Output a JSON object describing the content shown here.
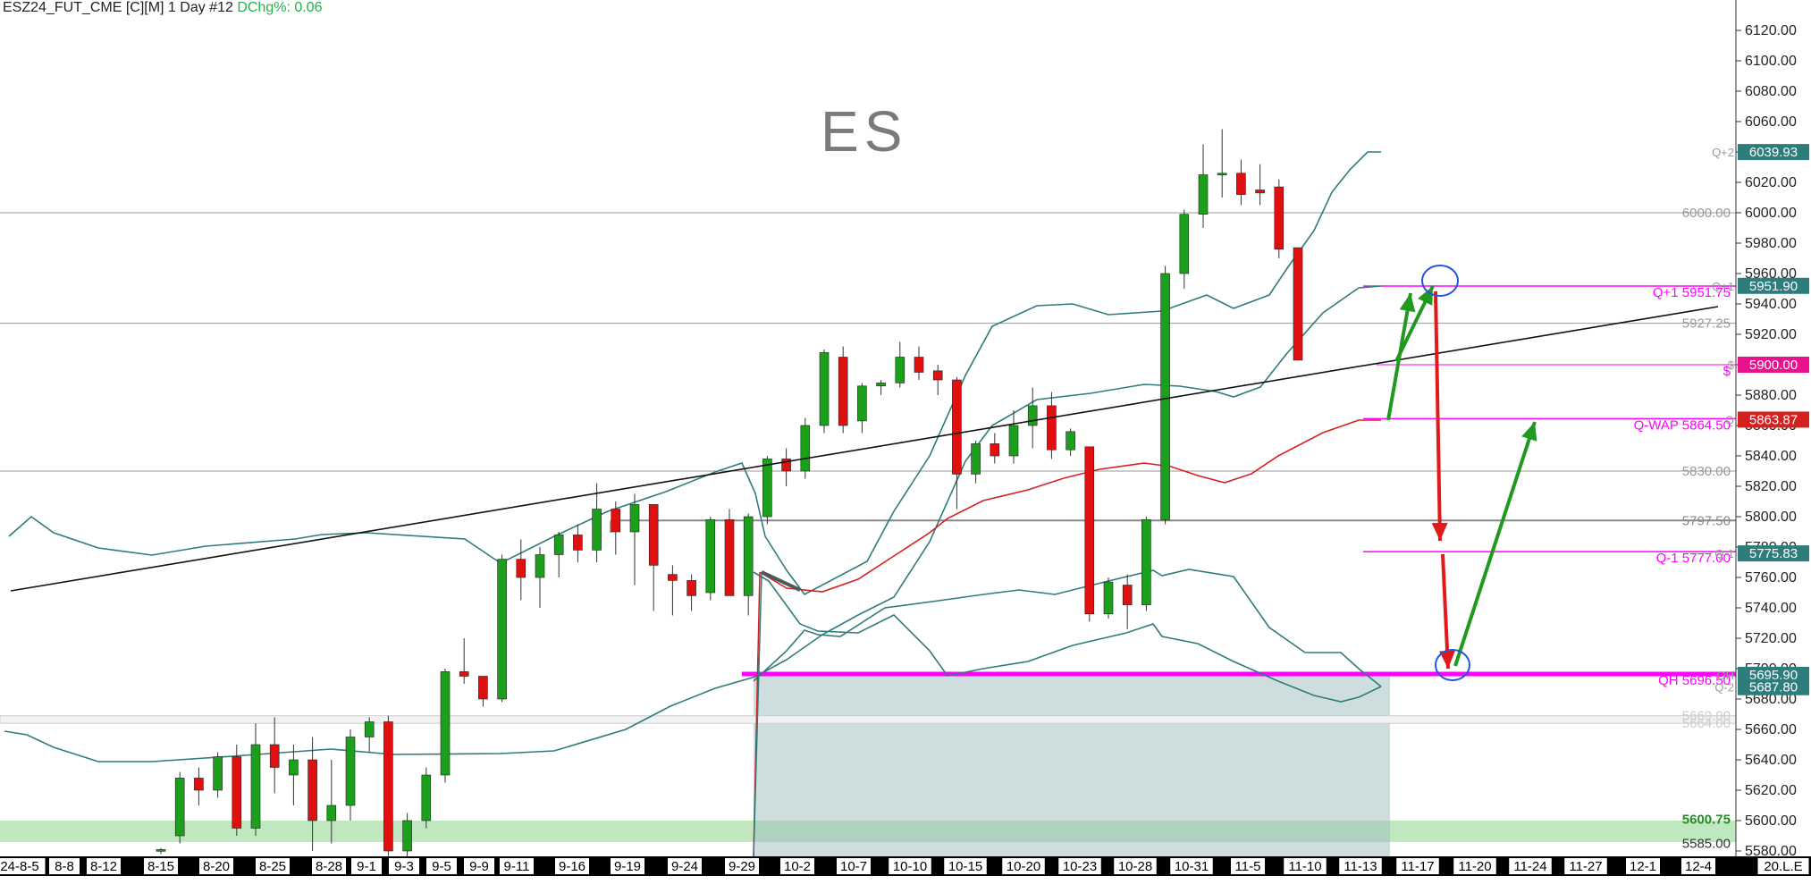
{
  "header": {
    "symbol": "ESZ24_FUT_CME [C][M]  1 Day #12",
    "change_label": "DChg%: 0.06"
  },
  "watermark": "ES",
  "chart_data": {
    "type": "candlestick",
    "title": "ESZ24_FUT_CME [C][M] 1 Day #12",
    "ylim": [
      5575,
      6135
    ],
    "grid": false,
    "y_ticks": [
      5580,
      5600,
      5620,
      5640,
      5660,
      5680,
      5700,
      5720,
      5740,
      5760,
      5780,
      5800,
      5820,
      5840,
      5860,
      5880,
      5900,
      5920,
      5940,
      5960,
      5980,
      6000,
      6020,
      6040,
      6060,
      6080,
      6100,
      6120
    ],
    "x_labels": [
      "24-8-5",
      "8-8",
      "8-12",
      "8-15",
      "8-20",
      "8-25",
      "8-28",
      "9-1",
      "9-3",
      "9-5",
      "9-9",
      "9-11",
      "9-16",
      "9-19",
      "9-24",
      "9-29",
      "10-2",
      "10-7",
      "10-10",
      "10-15",
      "10-20",
      "10-23",
      "10-28",
      "10-31",
      "11-5",
      "11-10",
      "11-13",
      "11-17",
      "11-20",
      "11-24",
      "11-27",
      "12-1",
      "12-4",
      "20.L.E"
    ],
    "candles": [
      {
        "o": 5580,
        "h": 5582,
        "l": 5578,
        "c": 5581
      },
      {
        "o": 5590,
        "h": 5632,
        "l": 5585,
        "c": 5628
      },
      {
        "o": 5628,
        "h": 5635,
        "l": 5610,
        "c": 5620
      },
      {
        "o": 5620,
        "h": 5645,
        "l": 5615,
        "c": 5642
      },
      {
        "o": 5642,
        "h": 5650,
        "l": 5590,
        "c": 5595
      },
      {
        "o": 5595,
        "h": 5664,
        "l": 5590,
        "c": 5650
      },
      {
        "o": 5650,
        "h": 5668,
        "l": 5618,
        "c": 5635
      },
      {
        "o": 5630,
        "h": 5650,
        "l": 5610,
        "c": 5640
      },
      {
        "o": 5640,
        "h": 5655,
        "l": 5580,
        "c": 5600
      },
      {
        "o": 5600,
        "h": 5640,
        "l": 5585,
        "c": 5610
      },
      {
        "o": 5610,
        "h": 5660,
        "l": 5600,
        "c": 5655
      },
      {
        "o": 5655,
        "h": 5668,
        "l": 5645,
        "c": 5665
      },
      {
        "o": 5665,
        "h": 5669,
        "l": 5575,
        "c": 5580
      },
      {
        "o": 5580,
        "h": 5605,
        "l": 5575,
        "c": 5600
      },
      {
        "o": 5600,
        "h": 5635,
        "l": 5595,
        "c": 5630
      },
      {
        "o": 5630,
        "h": 5700,
        "l": 5625,
        "c": 5698
      },
      {
        "o": 5698,
        "h": 5720,
        "l": 5690,
        "c": 5695
      },
      {
        "o": 5695,
        "h": 5695,
        "l": 5675,
        "c": 5680
      },
      {
        "o": 5680,
        "h": 5775,
        "l": 5678,
        "c": 5772
      },
      {
        "o": 5772,
        "h": 5785,
        "l": 5745,
        "c": 5760
      },
      {
        "o": 5760,
        "h": 5780,
        "l": 5740,
        "c": 5775
      },
      {
        "o": 5775,
        "h": 5790,
        "l": 5760,
        "c": 5788
      },
      {
        "o": 5788,
        "h": 5795,
        "l": 5770,
        "c": 5778
      },
      {
        "o": 5778,
        "h": 5822,
        "l": 5770,
        "c": 5805
      },
      {
        "o": 5805,
        "h": 5810,
        "l": 5775,
        "c": 5790
      },
      {
        "o": 5790,
        "h": 5815,
        "l": 5755,
        "c": 5808
      },
      {
        "o": 5808,
        "h": 5808,
        "l": 5738,
        "c": 5768
      },
      {
        "o": 5762,
        "h": 5768,
        "l": 5735,
        "c": 5758
      },
      {
        "o": 5758,
        "h": 5762,
        "l": 5738,
        "c": 5748
      },
      {
        "o": 5750,
        "h": 5800,
        "l": 5745,
        "c": 5798
      },
      {
        "o": 5798,
        "h": 5805,
        "l": 5748,
        "c": 5748
      },
      {
        "o": 5748,
        "h": 5802,
        "l": 5735,
        "c": 5800
      },
      {
        "o": 5800,
        "h": 5840,
        "l": 5795,
        "c": 5838
      },
      {
        "o": 5838,
        "h": 5845,
        "l": 5820,
        "c": 5830
      },
      {
        "o": 5830,
        "h": 5865,
        "l": 5825,
        "c": 5860
      },
      {
        "o": 5860,
        "h": 5910,
        "l": 5855,
        "c": 5908
      },
      {
        "o": 5905,
        "h": 5912,
        "l": 5855,
        "c": 5860
      },
      {
        "o": 5863,
        "h": 5888,
        "l": 5855,
        "c": 5886
      },
      {
        "o": 5886,
        "h": 5890,
        "l": 5880,
        "c": 5888
      },
      {
        "o": 5888,
        "h": 5915,
        "l": 5885,
        "c": 5905
      },
      {
        "o": 5905,
        "h": 5912,
        "l": 5890,
        "c": 5895
      },
      {
        "o": 5896,
        "h": 5900,
        "l": 5880,
        "c": 5890
      },
      {
        "o": 5890,
        "h": 5892,
        "l": 5805,
        "c": 5828
      },
      {
        "o": 5828,
        "h": 5850,
        "l": 5822,
        "c": 5848
      },
      {
        "o": 5848,
        "h": 5855,
        "l": 5835,
        "c": 5840
      },
      {
        "o": 5840,
        "h": 5870,
        "l": 5835,
        "c": 5860
      },
      {
        "o": 5860,
        "h": 5885,
        "l": 5845,
        "c": 5873
      },
      {
        "o": 5873,
        "h": 5882,
        "l": 5838,
        "c": 5844
      },
      {
        "o": 5844,
        "h": 5858,
        "l": 5840,
        "c": 5856
      },
      {
        "o": 5846,
        "h": 5846,
        "l": 5731,
        "c": 5736
      },
      {
        "o": 5736,
        "h": 5760,
        "l": 5733,
        "c": 5757
      },
      {
        "o": 5755,
        "h": 5762,
        "l": 5726,
        "c": 5742
      },
      {
        "o": 5742,
        "h": 5800,
        "l": 5738,
        "c": 5798
      },
      {
        "o": 5798,
        "h": 5965,
        "l": 5795,
        "c": 5960
      },
      {
        "o": 5960,
        "h": 6002,
        "l": 5950,
        "c": 5999
      },
      {
        "o": 5999,
        "h": 6045,
        "l": 5990,
        "c": 6025
      },
      {
        "o": 6025,
        "h": 6055,
        "l": 6010,
        "c": 6026
      },
      {
        "o": 6026,
        "h": 6035,
        "l": 6005,
        "c": 6012
      },
      {
        "o": 6015,
        "h": 6032,
        "l": 6005,
        "c": 6013
      },
      {
        "o": 6017,
        "h": 6022,
        "l": 5970,
        "c": 5976
      },
      {
        "o": 5977,
        "h": 5977,
        "l": 5903,
        "c": 5903
      }
    ],
    "horizontal_levels": [
      {
        "label": "6000.00",
        "value": 6000.0,
        "color": "#999999"
      },
      {
        "label": "5927.25",
        "value": 5927.25,
        "color": "#999999"
      },
      {
        "label": "5830.00",
        "value": 5830.0,
        "color": "#999999"
      },
      {
        "label": "5797.50",
        "value": 5797.5,
        "color": "#888888"
      },
      {
        "label": "5669.00",
        "value": 5669.0,
        "color": "#cccccc"
      },
      {
        "label": "5664.00",
        "value": 5664.0,
        "color": "#cccccc"
      },
      {
        "label": "5600.75",
        "value": 5600.75,
        "color": "#2a8a2a"
      },
      {
        "label": "5585.00",
        "value": 5585.0,
        "color": "#333333"
      }
    ],
    "quarter_levels": [
      {
        "label": "Q+1  5951.75",
        "value": 5951.75
      },
      {
        "label": "Q-WAP  5864.50",
        "value": 5864.5
      },
      {
        "label": "Q-1  5777.00",
        "value": 5777.0
      },
      {
        "label": "QH  5696.50",
        "value": 5696.5
      },
      {
        "label": "$",
        "value": 5900.0
      }
    ],
    "price_tags": [
      {
        "label": "Q+2",
        "value": 6039.93,
        "text": "6039.93",
        "color": "#2e7d7d"
      },
      {
        "label": "Q+1",
        "value": 5951.9,
        "text": "5951.90",
        "color": "#2e7d7d"
      },
      {
        "label": "$",
        "value": 5900.0,
        "text": "5900.00",
        "color": "#e8138c"
      },
      {
        "label": "Q",
        "value": 5863.87,
        "text": "5863.87",
        "color": "#d62020"
      },
      {
        "label": "Q-1",
        "value": 5775.83,
        "text": "5775.83",
        "color": "#2e7d7d"
      },
      {
        "label": "QH",
        "value": 5695.9,
        "text": "5695.90",
        "color": "#2e7d7d"
      },
      {
        "label": "Q-2",
        "value": 5687.8,
        "text": "5687.80",
        "color": "#2e7d7d"
      }
    ],
    "colors": {
      "up": "#1aa01a",
      "down": "#e01010",
      "band": "#2f7b7b",
      "vwap": "#d62020",
      "magenta": "#ff00ff",
      "trend": "#111111"
    }
  }
}
